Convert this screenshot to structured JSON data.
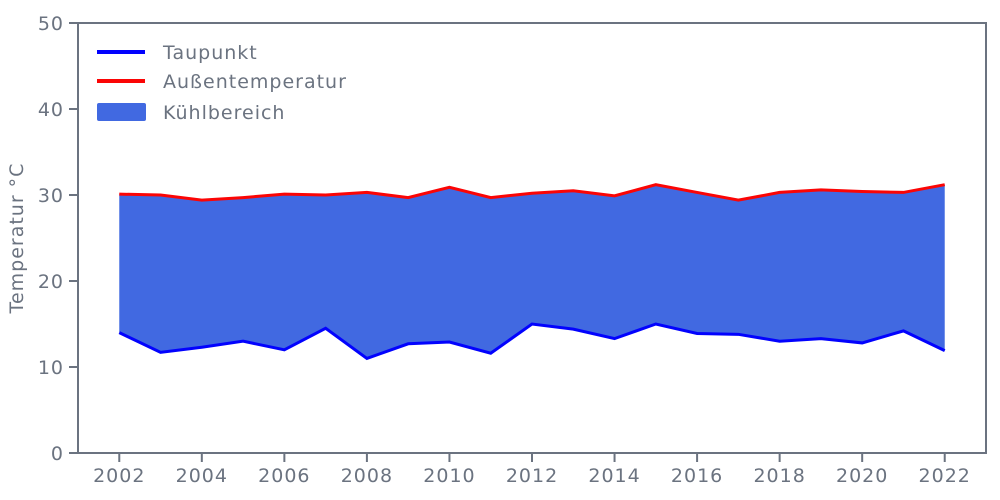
{
  "chart_data": {
    "type": "area",
    "title": "",
    "xlabel": "",
    "ylabel": "Temperatur °C",
    "x": [
      2002,
      2003,
      2004,
      2005,
      2006,
      2007,
      2008,
      2009,
      2010,
      2011,
      2012,
      2013,
      2014,
      2015,
      2016,
      2017,
      2018,
      2019,
      2020,
      2021,
      2022
    ],
    "series": [
      {
        "name": "Taupunkt",
        "color": "#0202fe",
        "values": [
          14.0,
          11.7,
          12.3,
          13.0,
          12.0,
          14.5,
          11.0,
          12.7,
          12.9,
          11.6,
          15.0,
          14.4,
          13.3,
          15.0,
          13.9,
          13.8,
          13.0,
          13.3,
          12.8,
          14.2,
          11.9
        ]
      },
      {
        "name": "Außentemperatur",
        "color": "#fb0505",
        "values": [
          30.1,
          30.0,
          29.4,
          29.7,
          30.1,
          30.0,
          30.3,
          29.7,
          30.9,
          29.7,
          30.2,
          30.5,
          29.9,
          31.2,
          30.3,
          29.4,
          30.3,
          30.6,
          30.4,
          30.3,
          31.2
        ]
      }
    ],
    "fill_between": {
      "name": "Kühlbereich",
      "between": [
        "Taupunkt",
        "Außentemperatur"
      ]
    },
    "fill_color": "#4169e1",
    "axis_color": "#6b7380",
    "xlim": [
      2001,
      2023
    ],
    "ylim": [
      0,
      50
    ],
    "xticks": [
      2002,
      2004,
      2006,
      2008,
      2010,
      2012,
      2014,
      2016,
      2018,
      2020,
      2022
    ],
    "yticks": [
      0,
      10,
      20,
      30,
      40,
      50
    ],
    "grid": false,
    "legend_position": "upper left"
  },
  "legend": {
    "items": [
      {
        "label": "Taupunkt",
        "type": "line",
        "color": "#0202fe"
      },
      {
        "label": "Außentemperatur",
        "type": "line",
        "color": "#fb0505"
      },
      {
        "label": "Kühlbereich",
        "type": "patch",
        "color": "#4169e1"
      }
    ]
  }
}
